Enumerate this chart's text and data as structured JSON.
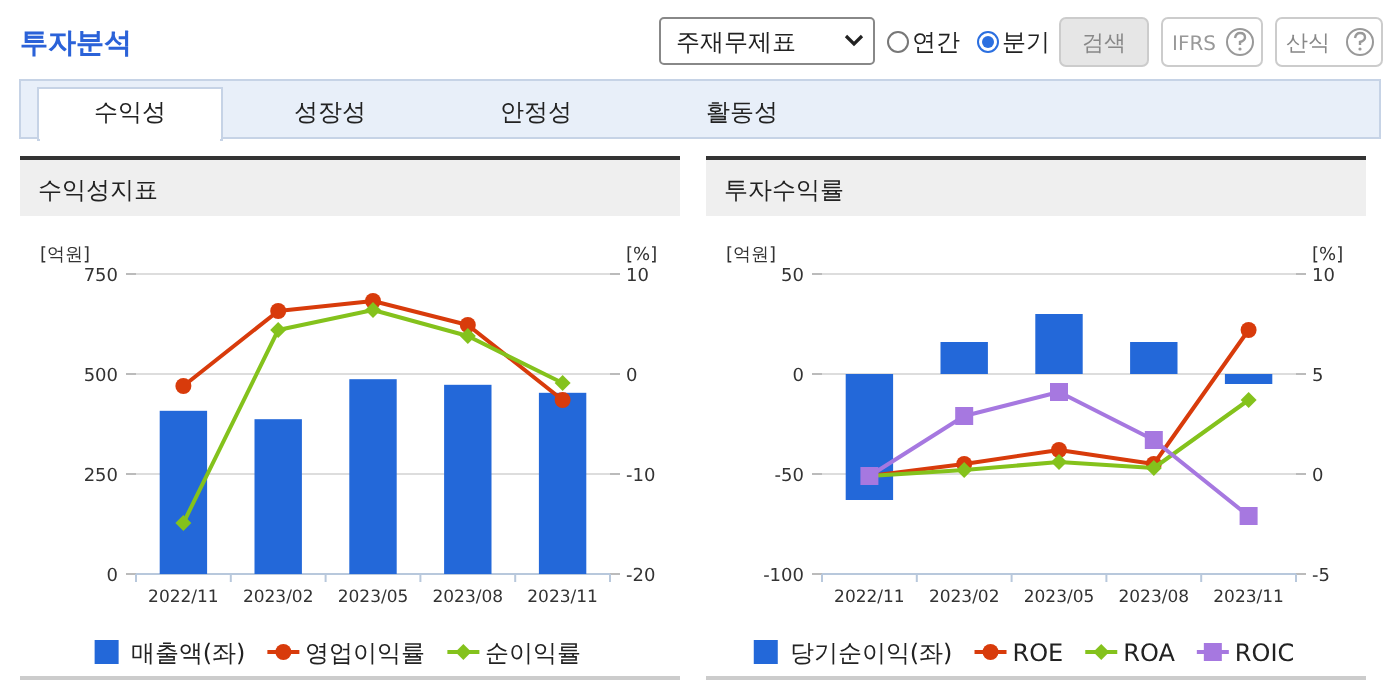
{
  "chart_data": [
    {
      "type": "other",
      "title": "투자분석",
      "annotations": [
        "주재무제표",
        "연간",
        "분기",
        "검색",
        "IFRS",
        "산식",
        "수익성",
        "성장성",
        "안정성",
        "활동성"
      ]
    },
    {
      "type": "bar",
      "title": "수익성지표",
      "ylabel": "[억원]",
      "y2label": "[%]",
      "categories": [
        "2022/11",
        "2023/02",
        "2023/05",
        "2023/08",
        "2023/11"
      ],
      "ylim": [
        0,
        750
      ],
      "yticks": [
        0,
        250,
        500,
        750
      ],
      "y2lim": [
        -20,
        10
      ],
      "y2ticks": [
        -20,
        -10,
        0,
        10
      ],
      "grid": "y",
      "legend": "bottom",
      "series": [
        {
          "name": "매출액(좌)",
          "type": "bar",
          "color": "#2368d9",
          "values": [
            408,
            387,
            487,
            473,
            453
          ]
        },
        {
          "name": "영업이익률",
          "type": "line",
          "axis": "y2",
          "marker": "circle",
          "color": "#d83b0b",
          "values": [
            -1.2,
            6.3,
            7.3,
            4.9,
            -2.6
          ]
        },
        {
          "name": "순이익률",
          "type": "line",
          "axis": "y2",
          "marker": "diamond",
          "color": "#84c21c",
          "values": [
            -14.9,
            4.4,
            6.4,
            3.8,
            -0.9
          ]
        }
      ]
    },
    {
      "type": "bar",
      "title": "투자수익률",
      "ylabel": "[억원]",
      "y2label": "[%]",
      "categories": [
        "2022/11",
        "2023/02",
        "2023/05",
        "2023/08",
        "2023/11"
      ],
      "ylim": [
        -100,
        50
      ],
      "yticks": [
        -100,
        -50,
        0,
        50
      ],
      "y2lim": [
        -5,
        10
      ],
      "y2ticks": [
        -5,
        0,
        5,
        10
      ],
      "grid": "y",
      "legend": "bottom",
      "series": [
        {
          "name": "당기순이익(좌)",
          "type": "bar",
          "color": "#2368d9",
          "values": [
            -63,
            16,
            30,
            16,
            -5
          ]
        },
        {
          "name": "ROE",
          "type": "line",
          "axis": "y2",
          "marker": "circle",
          "color": "#d83b0b",
          "values": [
            -0.1,
            0.5,
            1.2,
            0.5,
            7.2
          ]
        },
        {
          "name": "ROA",
          "type": "line",
          "axis": "y2",
          "marker": "diamond",
          "color": "#84c21c",
          "values": [
            -0.1,
            0.2,
            0.6,
            0.3,
            3.7
          ]
        },
        {
          "name": "ROIC",
          "type": "line",
          "axis": "y2",
          "marker": "square",
          "color": "#a678e0",
          "values": [
            -0.1,
            2.9,
            4.1,
            1.7,
            -2.1
          ]
        }
      ]
    }
  ]
}
